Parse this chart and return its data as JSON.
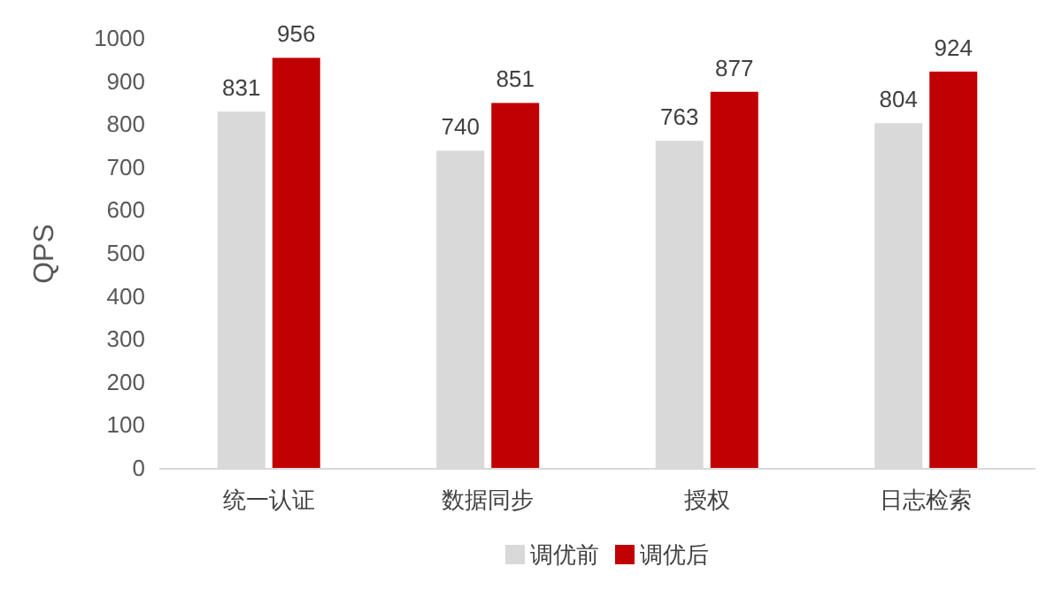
{
  "chart_data": {
    "type": "bar",
    "ylabel": "QPS",
    "categories": [
      "统一认证",
      "数据同步",
      "授权",
      "日志检索"
    ],
    "series": [
      {
        "name": "调优前",
        "color": "#d9d9d9",
        "values": [
          831,
          740,
          763,
          804
        ]
      },
      {
        "name": "调优后",
        "color": "#c00000",
        "values": [
          956,
          851,
          877,
          924
        ]
      }
    ],
    "ylim": [
      0,
      1000
    ],
    "yticks": [
      0,
      100,
      200,
      300,
      400,
      500,
      600,
      700,
      800,
      900,
      1000
    ],
    "data_labels": true,
    "legend": "bottom",
    "grid": false
  }
}
